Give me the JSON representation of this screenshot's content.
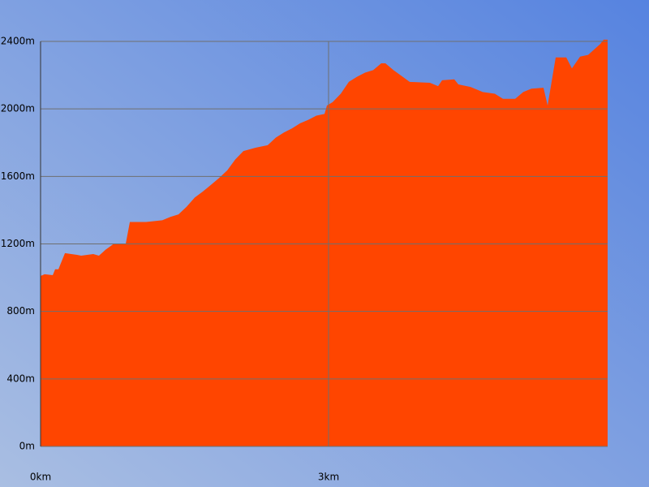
{
  "chart_data": {
    "type": "area",
    "x": [
      0,
      0.042,
      0.127,
      0.152,
      0.186,
      0.254,
      0.38,
      0.423,
      0.549,
      0.608,
      0.676,
      0.761,
      0.887,
      0.93,
      1.099,
      1.268,
      1.352,
      1.437,
      1.521,
      1.606,
      1.69,
      1.775,
      1.859,
      1.944,
      2.028,
      2.113,
      2.239,
      2.366,
      2.451,
      2.535,
      2.62,
      2.704,
      2.789,
      2.873,
      2.958,
      2.983,
      3.042,
      3.127,
      3.211,
      3.296,
      3.38,
      3.465,
      3.549,
      3.592,
      3.676,
      3.761,
      3.845,
      4.056,
      4.141,
      4.183,
      4.31,
      4.352,
      4.479,
      4.606,
      4.732,
      4.817,
      4.944,
      5.028,
      5.113,
      5.239,
      5.282,
      5.366,
      5.476,
      5.535,
      5.62,
      5.704,
      5.831,
      5.865,
      5.907
    ],
    "values": [
      1010,
      1020,
      1015,
      1050,
      1050,
      1145,
      1135,
      1130,
      1140,
      1130,
      1165,
      1200,
      1200,
      1330,
      1330,
      1340,
      1360,
      1375,
      1420,
      1475,
      1510,
      1550,
      1590,
      1635,
      1700,
      1750,
      1770,
      1785,
      1830,
      1860,
      1885,
      1915,
      1935,
      1960,
      1970,
      2020,
      2040,
      2090,
      2160,
      2190,
      2215,
      2230,
      2270,
      2270,
      2230,
      2195,
      2160,
      2155,
      2135,
      2170,
      2175,
      2145,
      2130,
      2100,
      2090,
      2060,
      2060,
      2100,
      2120,
      2125,
      2020,
      2305,
      2305,
      2240,
      2310,
      2320,
      2385,
      2410,
      2410
    ],
    "color": "#ff4500",
    "xlim": [
      0,
      5.907
    ],
    "xticks": [
      {
        "value": 0,
        "label": "0km"
      },
      {
        "value": 3,
        "label": "3km"
      }
    ],
    "ylim": [
      0,
      2400
    ],
    "yticks": [
      {
        "value": 0,
        "label": "0m"
      },
      {
        "value": 400,
        "label": "400m"
      },
      {
        "value": 800,
        "label": "800m"
      },
      {
        "value": 1200,
        "label": "1200m"
      },
      {
        "value": 1600,
        "label": "1600m"
      },
      {
        "value": 2000,
        "label": "2000m"
      },
      {
        "value": 2400,
        "label": "2400m"
      }
    ],
    "grid": true
  }
}
